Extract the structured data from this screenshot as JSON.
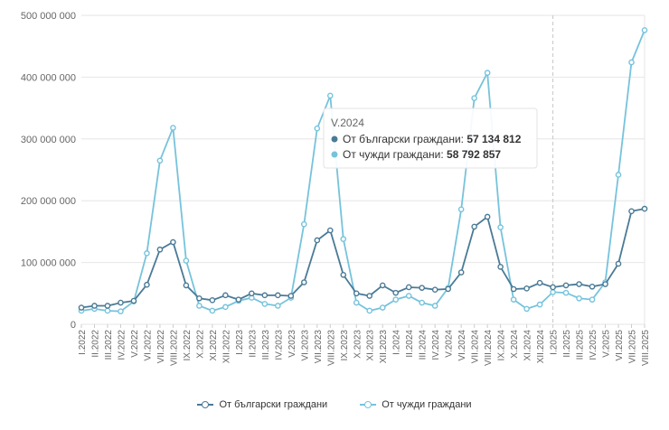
{
  "chart_data": {
    "type": "line",
    "x": [
      "I.2022",
      "II.2022",
      "III.2022",
      "IV.2022",
      "V.2022",
      "VI.2022",
      "VII.2022",
      "VIII.2022",
      "IX.2022",
      "X.2022",
      "XI.2022",
      "XII.2022",
      "I.2023",
      "II.2023",
      "III.2023",
      "IV.2023",
      "V.2023",
      "VI.2023",
      "VII.2023",
      "VIII.2023",
      "IX.2023",
      "X.2023",
      "XI.2023",
      "XII.2023",
      "I.2024",
      "II.2024",
      "III.2024",
      "IV.2024",
      "V.2024",
      "VI.2024",
      "VII.2024",
      "VIII.2024",
      "IX.2024",
      "X.2024",
      "XI.2024",
      "XII.2024",
      "I.2025",
      "II.2025",
      "III.2025",
      "IV.2025",
      "V.2025",
      "VI.2025",
      "VII.2025",
      "VIII.2025"
    ],
    "series": [
      {
        "name": "От български граждани",
        "color": "#4a7a96",
        "values": [
          27000000,
          30000000,
          30000000,
          35000000,
          38000000,
          64000000,
          121000000,
          133000000,
          63000000,
          42000000,
          39000000,
          47000000,
          40000000,
          50000000,
          47000000,
          47000000,
          46000000,
          68000000,
          136000000,
          152000000,
          80000000,
          50000000,
          46000000,
          63000000,
          51000000,
          60000000,
          59000000,
          56000000,
          57134812,
          84000000,
          158000000,
          174000000,
          93000000,
          57000000,
          58000000,
          67000000,
          60000000,
          63000000,
          65000000,
          61000000,
          65000000,
          98000000,
          183000000,
          187000000
        ]
      },
      {
        "name": "От чужди граждани",
        "color": "#76c3dc",
        "values": [
          22000000,
          25000000,
          22000000,
          21000000,
          37000000,
          115000000,
          265000000,
          318000000,
          103000000,
          30000000,
          22000000,
          28000000,
          38000000,
          43000000,
          33000000,
          30000000,
          43000000,
          162000000,
          317000000,
          370000000,
          138000000,
          35000000,
          22000000,
          27000000,
          40000000,
          46000000,
          35000000,
          30000000,
          58792857,
          186000000,
          366000000,
          407000000,
          157000000,
          40000000,
          25000000,
          32000000,
          52000000,
          51000000,
          42000000,
          40000000,
          68000000,
          242000000,
          424000000,
          476000000
        ]
      }
    ],
    "yticks": [
      "0",
      "100 000 000",
      "200 000 000",
      "300 000 000",
      "400 000 000",
      "500 000 000"
    ],
    "ytick_values": [
      0,
      100000000,
      200000000,
      300000000,
      400000000,
      500000000
    ],
    "ylim": [
      0,
      500000000
    ],
    "grid": true,
    "legend_position": "bottom-center",
    "crosshair_index": 36,
    "tooltip": {
      "index": 28,
      "title": "V.2024",
      "rows": [
        {
          "label": "От български граждани:",
          "value": "57 134 812",
          "color": "#4a7a96"
        },
        {
          "label": "От чужди граждани:",
          "value": "58 792 857",
          "color": "#76c3dc"
        }
      ]
    }
  }
}
